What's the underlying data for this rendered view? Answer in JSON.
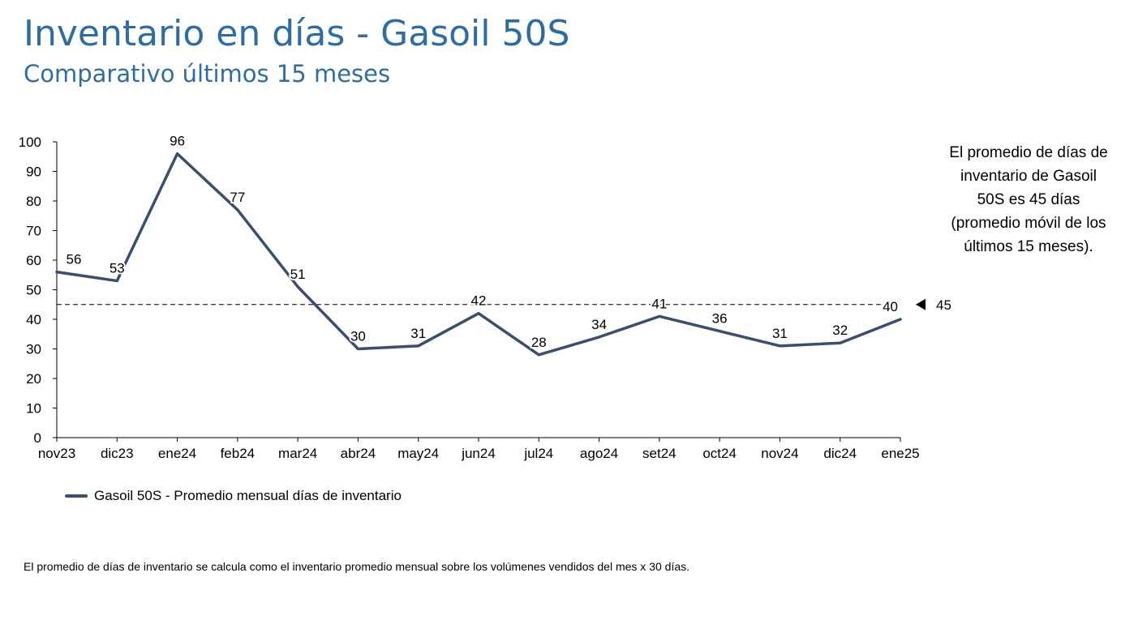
{
  "header": {
    "title": "Inventario en días - Gasoil 50S",
    "subtitle": "Comparativo últimos 15 meses"
  },
  "note": "El promedio de días de inventario de Gasoil 50S es 45 días (promedio móvil de los últimos 15 meses).",
  "footnote": "El promedio de días de inventario se calcula como el inventario promedio mensual sobre los volúmenes vendidos del mes x 30 días.",
  "colors": {
    "line": "#3a4f6e",
    "title": "#2e6da4",
    "axis": "#000000"
  },
  "chart_data": {
    "type": "line",
    "categories": [
      "nov23",
      "dic23",
      "ene24",
      "feb24",
      "mar24",
      "abr24",
      "may24",
      "jun24",
      "jul24",
      "ago24",
      "set24",
      "oct24",
      "nov24",
      "dic24",
      "ene25"
    ],
    "series": [
      {
        "name": "Gasoil 50S - Promedio mensual días de inventario",
        "values": [
          56,
          53,
          96,
          77,
          51,
          30,
          31,
          42,
          28,
          34,
          41,
          36,
          31,
          32,
          40
        ],
        "color": "#3a4f6e"
      }
    ],
    "reference_line": {
      "value": 45,
      "label": "45",
      "style": "dashed"
    },
    "ylim": [
      0,
      100
    ],
    "yticks": [
      0,
      10,
      20,
      30,
      40,
      50,
      60,
      70,
      80,
      90,
      100
    ],
    "grid": false,
    "legend_position": "bottom-left",
    "data_labels": true
  }
}
